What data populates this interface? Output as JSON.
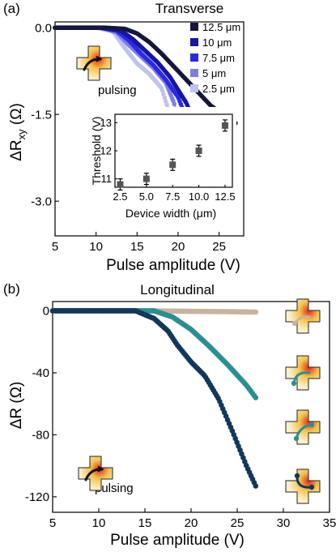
{
  "figure": {
    "panel_a": {
      "letter": "(a)",
      "title": "Transverse",
      "ylabel": "ΔR",
      "ylabel_sub": "xy",
      "ylabel_unit": " (Ω)",
      "xlabel": "Pulse amplitude (V)",
      "annotation": "pulsing"
    },
    "panel_b": {
      "letter": "(b)",
      "title": "Longitudinal",
      "ylabel": "ΔR (Ω)",
      "xlabel": "Pulse amplitude (V)",
      "annotation": "pulsing"
    },
    "inset": {
      "xlabel": "Device width (μm)",
      "ylabel": "Threshold (V)"
    },
    "colors": {
      "w12_5": "#14163d",
      "w10": "#1515a6",
      "w7_5": "#2a2ae6",
      "w5": "#7d7fdf",
      "w2_5": "#bfc3ec",
      "long_tan": "#c7b39f",
      "long_teal": "#2b8f92",
      "long_navy": "#13375c",
      "cross_fill": "#f2c24a",
      "cross_hot": "#e8251c"
    }
  },
  "chart_data": [
    {
      "type": "scatter",
      "title": "Transverse",
      "xlabel": "Pulse amplitude (V)",
      "ylabel": "ΔRxy (Ω)",
      "xlim": [
        5,
        28
      ],
      "ylim": [
        -3.6,
        0.1
      ],
      "xticks": [
        5,
        10,
        15,
        20,
        25
      ],
      "yticks": [
        0.0,
        -1.5,
        -3.0
      ],
      "ytick_labels": [
        "0.0",
        "-1.5",
        "-3.0"
      ],
      "legend": "top-right",
      "series": [
        {
          "name": "12.5 μm",
          "x": [
            5,
            11,
            13.5,
            15,
            16.5,
            18,
            20,
            22,
            24,
            26,
            27
          ],
          "y": [
            0,
            0,
            -0.02,
            -0.1,
            -0.25,
            -0.45,
            -0.75,
            -1.05,
            -1.35,
            -1.55,
            -1.65
          ]
        },
        {
          "name": "10 μm",
          "x": [
            5,
            11,
            13,
            14.5,
            16,
            17.5,
            19,
            21,
            23,
            24.5,
            25.5
          ],
          "y": [
            0,
            0,
            -0.05,
            -0.2,
            -0.4,
            -0.6,
            -0.85,
            -1.3,
            -1.95,
            -2.4,
            -2.65
          ]
        },
        {
          "name": "7.5 μm",
          "x": [
            5,
            10.5,
            12.5,
            14,
            15.5,
            17,
            18.5,
            20,
            21.5,
            23,
            24
          ],
          "y": [
            0,
            0,
            -0.05,
            -0.22,
            -0.45,
            -0.65,
            -0.9,
            -1.2,
            -1.75,
            -2.45,
            -2.9
          ]
        },
        {
          "name": "5 μm",
          "x": [
            5,
            10.5,
            12.5,
            14,
            15.5,
            17,
            18.5,
            19.5,
            20.5,
            21.5,
            22.5,
            23.5
          ],
          "y": [
            0,
            0,
            -0.08,
            -0.3,
            -0.5,
            -0.7,
            -0.95,
            -1.3,
            -1.9,
            -2.6,
            -3.1,
            -3.3
          ]
        },
        {
          "name": "2.5 μm",
          "x": [
            5,
            10,
            12,
            13.5,
            15,
            16.5,
            18,
            19,
            20,
            21,
            22,
            23,
            23.7
          ],
          "y": [
            0,
            0,
            -0.05,
            -0.35,
            -0.62,
            -0.8,
            -1.05,
            -1.5,
            -2.1,
            -2.7,
            -3.05,
            -3.1,
            -2.75
          ]
        }
      ]
    },
    {
      "type": "scatter",
      "title": "",
      "xlabel": "Device width (μm)",
      "ylabel": "Threshold (V)",
      "xlim": [
        2.0,
        13.2
      ],
      "ylim": [
        10.7,
        13.3
      ],
      "xticks": [
        2.5,
        5.0,
        7.5,
        10.0,
        12.5
      ],
      "xtick_labels": [
        "2.5",
        "5.0",
        "7.5",
        "10.0",
        "12.5"
      ],
      "yticks": [
        11,
        12,
        13
      ],
      "series": [
        {
          "x": [
            2.5,
            5.0,
            7.5,
            10.0,
            12.5
          ],
          "y": [
            10.8,
            11.0,
            11.5,
            12.0,
            12.9
          ],
          "yerr": [
            0.2,
            0.2,
            0.2,
            0.2,
            0.2
          ]
        }
      ]
    },
    {
      "type": "scatter",
      "title": "Longitudinal",
      "xlabel": "Pulse amplitude (V)",
      "ylabel": "ΔR (Ω)",
      "xlim": [
        5,
        35
      ],
      "ylim": [
        -130,
        6
      ],
      "xticks": [
        5,
        10,
        15,
        20,
        25,
        30,
        35
      ],
      "yticks": [
        0,
        -40,
        -80,
        -120
      ],
      "series": [
        {
          "x": [
            5,
            15,
            20,
            25,
            27
          ],
          "y": [
            0,
            0,
            -0.3,
            -0.6,
            -0.8
          ]
        },
        {
          "x": [
            5,
            16,
            18,
            20,
            22,
            24,
            26,
            27
          ],
          "y": [
            0,
            0,
            -4,
            -12,
            -23,
            -35,
            -48,
            -56
          ]
        },
        {
          "x": [
            5,
            14,
            16,
            17.5,
            18.5,
            20,
            21.5,
            23,
            24.5,
            26,
            27
          ],
          "y": [
            0,
            0,
            -5,
            -13,
            -22,
            -33,
            -42,
            -57,
            -78,
            -100,
            -113
          ]
        }
      ]
    }
  ]
}
